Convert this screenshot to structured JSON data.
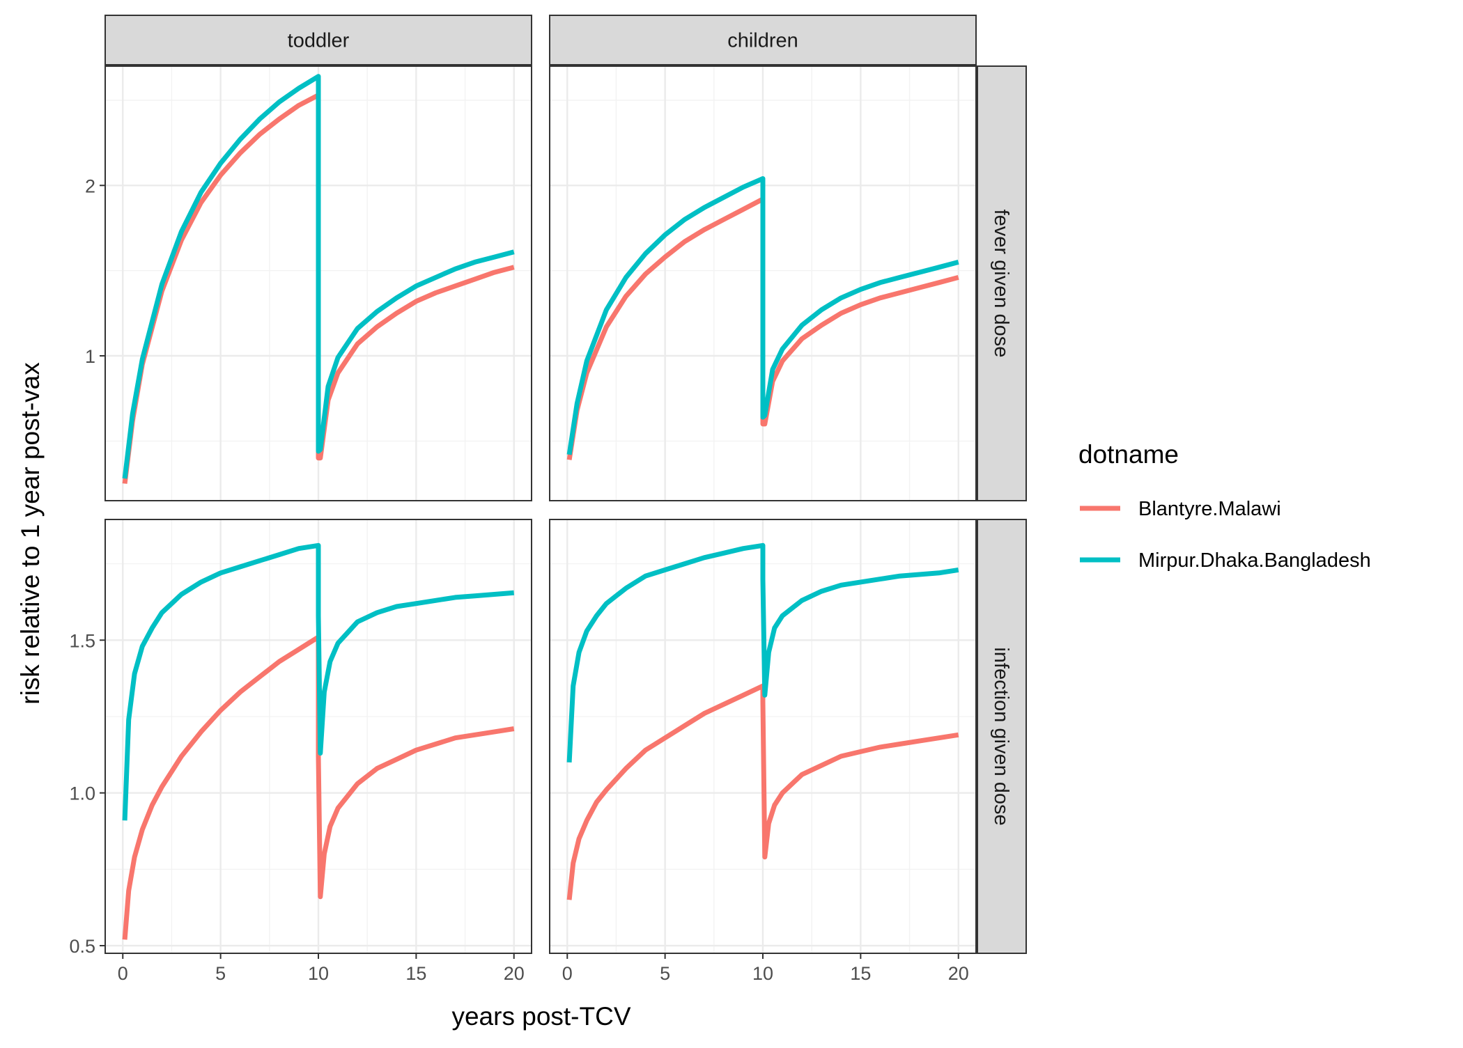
{
  "chart_data": {
    "type": "line",
    "xlabel": "years post-TCV",
    "ylabel": "risk relative to 1 year post-vax",
    "x_ticks": [
      0,
      5,
      10,
      15,
      20
    ],
    "xlim": [
      -0.9,
      20.9
    ],
    "legend": {
      "title": "dotname",
      "position": "right",
      "entries": [
        {
          "name": "Blantyre.Malawi",
          "color": "#F8766D"
        },
        {
          "name": "Mirpur.Dhaka.Bangladesh",
          "color": "#00BFC4"
        }
      ]
    },
    "column_facets": [
      "toddler",
      "children"
    ],
    "row_facets": [
      {
        "label": "fever given dose",
        "ylim": [
          0.15,
          2.7
        ],
        "y_ticks": [
          1,
          2
        ],
        "y_tick_labels": [
          "1",
          "2"
        ],
        "y_minor": [
          0.5,
          1.5,
          2.5
        ]
      },
      {
        "label": "infection given dose",
        "ylim": [
          0.475,
          1.895
        ],
        "y_ticks": [
          0.5,
          1.0,
          1.5
        ],
        "y_tick_labels": [
          "0.5",
          "1.0",
          "1.5"
        ],
        "y_minor": [
          0.75,
          1.25,
          1.75
        ]
      }
    ],
    "grid": true,
    "panels": [
      {
        "row": 0,
        "col": 0,
        "series": [
          {
            "name": "Blantyre.Malawi",
            "x": [
              0.1,
              0.5,
              1,
              2,
              3,
              4,
              5,
              6,
              7,
              8,
              9,
              10,
              10,
              10.1,
              10.5,
              11,
              12,
              13,
              14,
              15,
              16,
              17,
              18,
              19,
              20
            ],
            "y": [
              0.25,
              0.62,
              0.95,
              1.38,
              1.68,
              1.9,
              2.06,
              2.19,
              2.3,
              2.39,
              2.47,
              2.53,
              0.4,
              0.4,
              0.74,
              0.9,
              1.07,
              1.17,
              1.25,
              1.32,
              1.37,
              1.41,
              1.45,
              1.49,
              1.52
            ]
          },
          {
            "name": "Mirpur.Dhaka.Bangladesh",
            "x": [
              0.1,
              0.5,
              1,
              2,
              3,
              4,
              5,
              6,
              7,
              8,
              9,
              10,
              10,
              10.1,
              10.5,
              11,
              12,
              13,
              14,
              15,
              16,
              17,
              18,
              19,
              20
            ],
            "y": [
              0.28,
              0.66,
              0.98,
              1.42,
              1.73,
              1.96,
              2.13,
              2.27,
              2.39,
              2.49,
              2.57,
              2.64,
              0.44,
              0.45,
              0.82,
              0.99,
              1.16,
              1.26,
              1.34,
              1.41,
              1.46,
              1.51,
              1.55,
              1.58,
              1.61
            ]
          }
        ]
      },
      {
        "row": 0,
        "col": 1,
        "series": [
          {
            "name": "Blantyre.Malawi",
            "x": [
              0.1,
              0.5,
              1,
              2,
              3,
              4,
              5,
              6,
              7,
              8,
              9,
              10,
              10,
              10.1,
              10.5,
              11,
              12,
              13,
              14,
              15,
              16,
              17,
              18,
              19,
              20
            ],
            "y": [
              0.39,
              0.68,
              0.9,
              1.17,
              1.35,
              1.48,
              1.58,
              1.67,
              1.74,
              1.8,
              1.86,
              1.92,
              0.6,
              0.6,
              0.85,
              0.97,
              1.1,
              1.18,
              1.25,
              1.3,
              1.34,
              1.37,
              1.4,
              1.43,
              1.46
            ]
          },
          {
            "name": "Mirpur.Dhaka.Bangladesh",
            "x": [
              0.1,
              0.5,
              1,
              2,
              3,
              4,
              5,
              6,
              7,
              8,
              9,
              10,
              10,
              10.1,
              10.5,
              11,
              12,
              13,
              14,
              15,
              16,
              17,
              18,
              19,
              20
            ],
            "y": [
              0.42,
              0.72,
              0.97,
              1.27,
              1.46,
              1.6,
              1.71,
              1.8,
              1.87,
              1.93,
              1.99,
              2.04,
              0.64,
              0.65,
              0.92,
              1.04,
              1.18,
              1.27,
              1.34,
              1.39,
              1.43,
              1.46,
              1.49,
              1.52,
              1.55
            ]
          }
        ]
      },
      {
        "row": 1,
        "col": 0,
        "series": [
          {
            "name": "Blantyre.Malawi",
            "x": [
              0.1,
              0.3,
              0.6,
              1,
              1.5,
              2,
              3,
              4,
              5,
              6,
              7,
              8,
              9,
              10,
              10,
              10.1,
              10.3,
              10.6,
              11,
              12,
              13,
              14,
              15,
              16,
              17,
              18,
              19,
              20
            ],
            "y": [
              0.52,
              0.68,
              0.79,
              0.88,
              0.96,
              1.02,
              1.12,
              1.2,
              1.27,
              1.33,
              1.38,
              1.43,
              1.47,
              1.51,
              1.12,
              0.66,
              0.8,
              0.89,
              0.95,
              1.03,
              1.08,
              1.11,
              1.14,
              1.16,
              1.18,
              1.19,
              1.2,
              1.21
            ]
          },
          {
            "name": "Mirpur.Dhaka.Bangladesh",
            "x": [
              0.1,
              0.3,
              0.6,
              1,
              1.5,
              2,
              3,
              4,
              5,
              6,
              7,
              8,
              9,
              10,
              10,
              10.1,
              10.3,
              10.6,
              11,
              12,
              13,
              14,
              15,
              16,
              17,
              18,
              19,
              20
            ],
            "y": [
              0.91,
              1.24,
              1.39,
              1.48,
              1.54,
              1.59,
              1.65,
              1.69,
              1.72,
              1.74,
              1.76,
              1.78,
              1.8,
              1.81,
              1.58,
              1.13,
              1.33,
              1.43,
              1.49,
              1.56,
              1.59,
              1.61,
              1.62,
              1.63,
              1.64,
              1.645,
              1.65,
              1.655
            ]
          }
        ]
      },
      {
        "row": 1,
        "col": 1,
        "series": [
          {
            "name": "Blantyre.Malawi",
            "x": [
              0.1,
              0.3,
              0.6,
              1,
              1.5,
              2,
              3,
              4,
              5,
              6,
              7,
              8,
              9,
              10,
              10,
              10.1,
              10.3,
              10.6,
              11,
              12,
              13,
              14,
              15,
              16,
              17,
              18,
              19,
              20
            ],
            "y": [
              0.65,
              0.77,
              0.85,
              0.91,
              0.97,
              1.01,
              1.08,
              1.14,
              1.18,
              1.22,
              1.26,
              1.29,
              1.32,
              1.35,
              1.3,
              0.79,
              0.9,
              0.96,
              1.0,
              1.06,
              1.09,
              1.12,
              1.135,
              1.15,
              1.16,
              1.17,
              1.18,
              1.19
            ]
          },
          {
            "name": "Mirpur.Dhaka.Bangladesh",
            "x": [
              0.1,
              0.3,
              0.6,
              1,
              1.5,
              2,
              3,
              4,
              5,
              6,
              7,
              8,
              9,
              10,
              10,
              10.1,
              10.3,
              10.6,
              11,
              12,
              13,
              14,
              15,
              16,
              17,
              18,
              19,
              20
            ],
            "y": [
              1.1,
              1.35,
              1.46,
              1.53,
              1.58,
              1.62,
              1.67,
              1.71,
              1.73,
              1.75,
              1.77,
              1.785,
              1.8,
              1.81,
              1.7,
              1.32,
              1.46,
              1.54,
              1.58,
              1.63,
              1.66,
              1.68,
              1.69,
              1.7,
              1.71,
              1.715,
              1.72,
              1.73
            ]
          }
        ]
      }
    ]
  }
}
